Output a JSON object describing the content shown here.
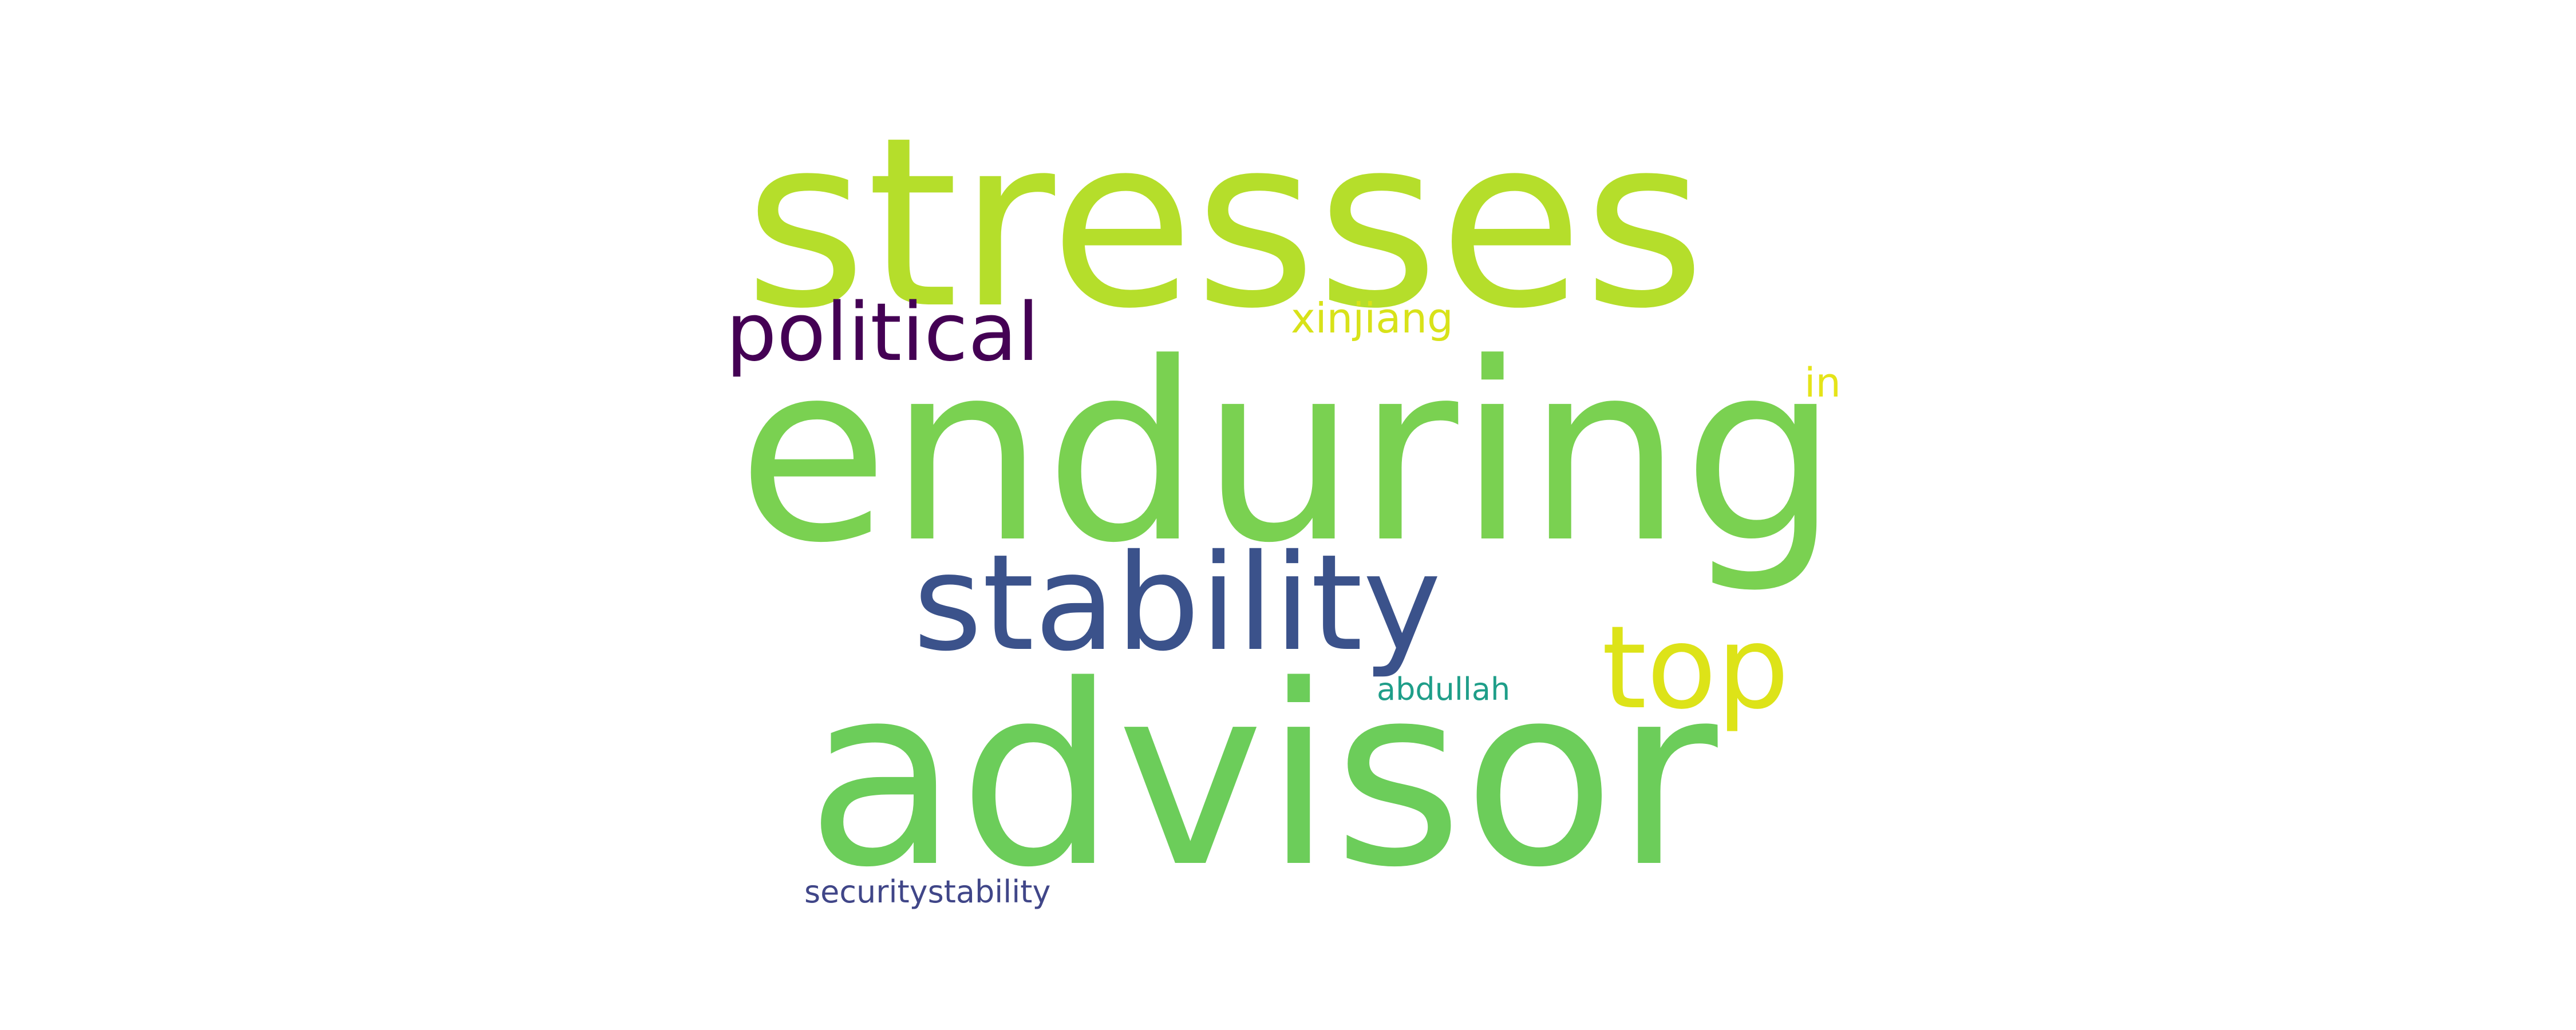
{
  "words": {
    "stresses": {
      "text": "stresses",
      "color": "#b5de2b"
    },
    "enduring": {
      "text": "enduring",
      "color": "#7ad151"
    },
    "advisor": {
      "text": "advisor",
      "color": "#6ccd5a"
    },
    "stability": {
      "text": "stability",
      "color": "#3b528b"
    },
    "political": {
      "text": "political",
      "color": "#440154"
    },
    "top": {
      "text": "top",
      "color": "#dde318"
    },
    "xinjiang": {
      "text": "xinjiang",
      "color": "#d8e219"
    },
    "in": {
      "text": "in",
      "color": "#e5e419"
    },
    "abdullah": {
      "text": "abdullah",
      "color": "#1f9e89"
    },
    "securitystability": {
      "text": "securitystability",
      "color": "#404688"
    }
  }
}
